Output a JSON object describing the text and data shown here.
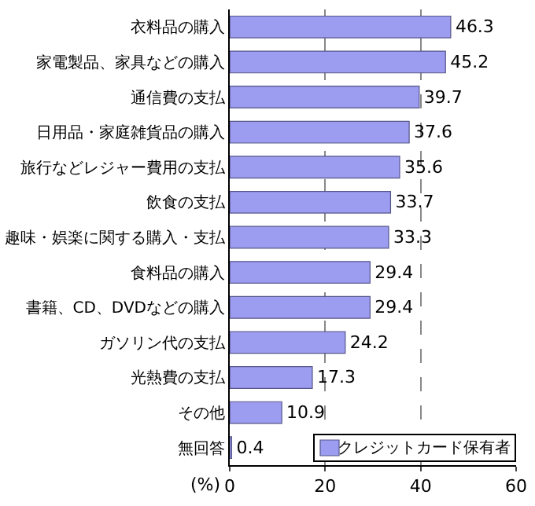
{
  "chart_data": {
    "type": "bar",
    "orientation": "horizontal",
    "xlabel": "(%)",
    "categories": [
      "衣料品の購入",
      "家電製品、家具などの購入",
      "通信費の支払",
      "日用品・家庭雑貨品の購入",
      "旅行などレジャー費用の支払",
      "飲食の支払",
      "趣味・娯楽に関する購入・支払",
      "食料品の購入",
      "書籍、CD、DVDなどの購入",
      "ガソリン代の支払",
      "光熱費の支払",
      "その他",
      "無回答"
    ],
    "series": [
      {
        "name": "クレジットカード保有者",
        "color": "#9c9cf0",
        "values": [
          46.3,
          45.2,
          39.7,
          37.6,
          35.6,
          33.7,
          33.3,
          29.4,
          29.4,
          24.2,
          17.3,
          10.9,
          0.4
        ]
      }
    ],
    "xlim": [
      0,
      60
    ],
    "xticks": [
      0,
      20,
      40,
      60
    ],
    "grid": "x",
    "data_labels": true,
    "legend": "bottom right"
  }
}
